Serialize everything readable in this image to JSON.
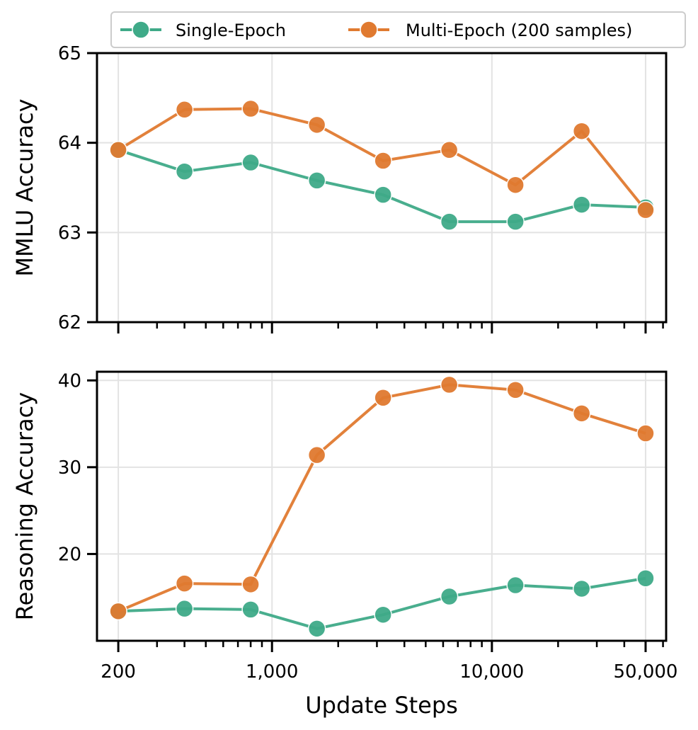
{
  "chart_data": [
    {
      "type": "line",
      "xscale": "log",
      "x": [
        200,
        400,
        800,
        1600,
        3200,
        6400,
        12800,
        25600,
        50000
      ],
      "xticks": [
        200,
        1000,
        10000,
        50000
      ],
      "xtick_labels": [],
      "xlabel": "",
      "ylabel": "MMLU Accuracy",
      "ylim": [
        62,
        65
      ],
      "yticks": [
        62,
        63,
        64,
        65
      ],
      "ytick_labels": [
        "62",
        "63",
        "64",
        "65"
      ],
      "grid": true,
      "series": [
        {
          "name": "Single-Epoch",
          "color": "#3faa88",
          "values": [
            63.92,
            63.68,
            63.78,
            63.58,
            63.42,
            63.12,
            63.12,
            63.31,
            63.28
          ]
        },
        {
          "name": "Multi-Epoch (200 samples)",
          "color": "#e07a30",
          "values": [
            63.92,
            64.37,
            64.38,
            64.2,
            63.8,
            63.92,
            63.53,
            64.13,
            63.25
          ]
        }
      ]
    },
    {
      "type": "line",
      "xscale": "log",
      "x": [
        200,
        400,
        800,
        1600,
        3200,
        6400,
        12800,
        25600,
        50000
      ],
      "xticks": [
        200,
        1000,
        10000,
        50000
      ],
      "xtick_labels": [
        "200",
        "1,000",
        "10,000",
        "50,000"
      ],
      "xlabel": "Update Steps",
      "ylabel": "Reasoning Accuracy",
      "ylim": [
        10,
        41
      ],
      "yticks": [
        20,
        30,
        40
      ],
      "ytick_labels": [
        "20",
        "30",
        "40"
      ],
      "grid": true,
      "series": [
        {
          "name": "Single-Epoch",
          "color": "#3faa88",
          "values": [
            13.4,
            13.7,
            13.6,
            11.4,
            13.0,
            15.1,
            16.4,
            16.0,
            17.2
          ]
        },
        {
          "name": "Multi-Epoch (200 samples)",
          "color": "#e07a30",
          "values": [
            13.4,
            16.6,
            16.5,
            31.4,
            38.0,
            39.5,
            38.9,
            36.2,
            33.9
          ]
        }
      ]
    }
  ],
  "legend": {
    "position": "top",
    "entries": [
      "Single-Epoch",
      "Multi-Epoch (200 samples)"
    ]
  }
}
